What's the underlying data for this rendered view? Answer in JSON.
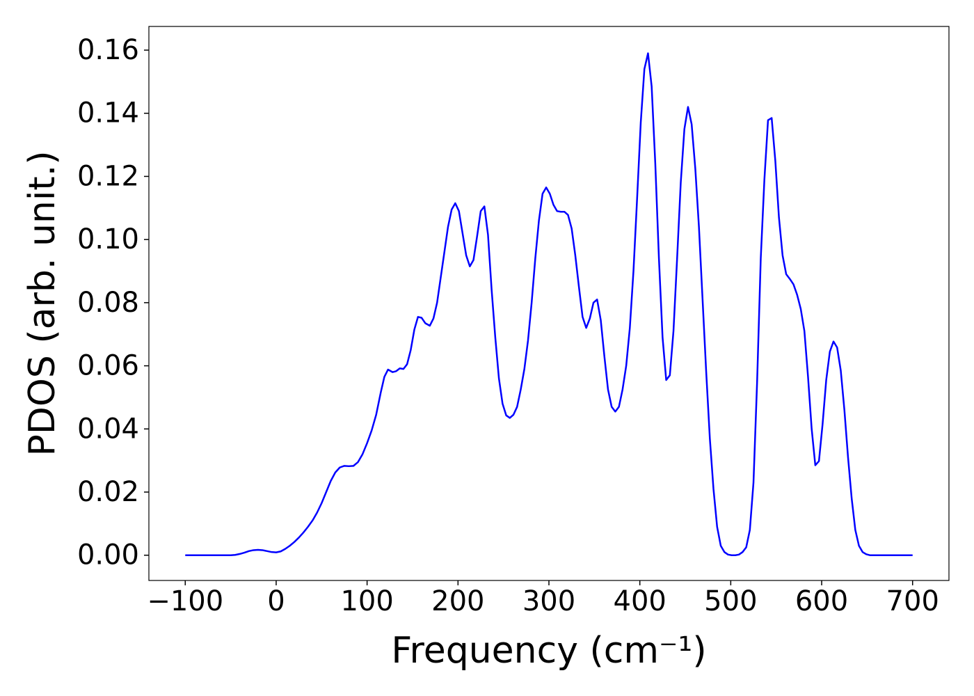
{
  "chart_data": {
    "type": "line",
    "x_label": "Frequency (cm⁻¹)",
    "y_label": "PDOS (arb. unit.)",
    "x": [
      -100,
      -50,
      -45,
      -40,
      -35,
      -30,
      -25,
      -20,
      -15,
      -10,
      -5,
      0,
      5,
      10,
      15,
      20,
      25,
      30,
      35,
      40,
      45,
      50,
      55,
      60,
      65,
      70,
      75,
      80,
      85,
      90,
      95,
      100,
      105,
      110,
      115,
      119,
      123,
      128,
      132,
      136,
      140,
      144,
      148,
      152,
      156,
      160,
      164,
      169,
      173,
      177,
      181,
      185,
      189,
      193,
      197,
      201,
      205,
      209,
      213,
      217,
      221,
      225,
      229,
      233,
      237,
      241,
      245,
      249,
      253,
      257,
      261,
      265,
      269,
      273,
      277,
      281,
      285,
      289,
      293,
      297,
      301,
      305,
      309,
      313,
      317,
      321,
      325,
      329,
      333,
      337,
      341,
      345,
      349,
      353,
      357,
      361,
      365,
      369,
      373,
      377,
      381,
      385,
      389,
      393,
      397,
      401,
      405,
      409,
      413,
      417,
      421,
      425,
      429,
      433,
      437,
      441,
      445,
      449,
      453,
      457,
      461,
      465,
      469,
      473,
      477,
      481,
      485,
      489,
      493,
      497,
      501,
      505,
      509,
      513,
      517,
      521,
      525,
      529,
      533,
      537,
      541,
      545,
      549,
      553,
      557,
      561,
      565,
      569,
      573,
      577,
      581,
      585,
      589,
      593,
      597,
      601,
      605,
      609,
      613,
      617,
      621,
      625,
      629,
      633,
      637,
      641,
      645,
      649,
      653,
      700
    ],
    "series": [
      {
        "color": "#0000ff",
        "values": [
          0,
          0,
          0.0001,
          0.0004,
          0.0008,
          0.0013,
          0.0016,
          0.0017,
          0.0016,
          0.0013,
          0.001,
          0.0009,
          0.0012,
          0.002,
          0.003,
          0.0042,
          0.0056,
          0.0072,
          0.009,
          0.011,
          0.0135,
          0.0165,
          0.02,
          0.0235,
          0.0262,
          0.0278,
          0.0283,
          0.0282,
          0.0283,
          0.0295,
          0.032,
          0.0355,
          0.0395,
          0.0445,
          0.0515,
          0.0565,
          0.0588,
          0.058,
          0.0583,
          0.0592,
          0.059,
          0.0605,
          0.065,
          0.0715,
          0.0755,
          0.0752,
          0.0735,
          0.0727,
          0.075,
          0.08,
          0.088,
          0.096,
          0.104,
          0.1095,
          0.1115,
          0.109,
          0.102,
          0.095,
          0.0915,
          0.0935,
          0.101,
          0.109,
          0.1105,
          0.1015,
          0.084,
          0.069,
          0.056,
          0.048,
          0.0443,
          0.0435,
          0.0445,
          0.047,
          0.0525,
          0.059,
          0.068,
          0.08,
          0.094,
          0.106,
          0.1145,
          0.1165,
          0.1145,
          0.111,
          0.109,
          0.1088,
          0.1088,
          0.1078,
          0.1035,
          0.095,
          0.085,
          0.0755,
          0.072,
          0.075,
          0.08,
          0.081,
          0.0745,
          0.063,
          0.0525,
          0.047,
          0.0455,
          0.047,
          0.0525,
          0.06,
          0.072,
          0.09,
          0.113,
          0.137,
          0.154,
          0.159,
          0.1485,
          0.124,
          0.094,
          0.069,
          0.0555,
          0.057,
          0.071,
          0.094,
          0.118,
          0.135,
          0.142,
          0.1365,
          0.1225,
          0.104,
          0.081,
          0.058,
          0.037,
          0.021,
          0.009,
          0.003,
          0.001,
          0.0002,
          0,
          0,
          0.0002,
          0.001,
          0.0025,
          0.008,
          0.023,
          0.055,
          0.094,
          0.119,
          0.1378,
          0.1385,
          0.125,
          0.107,
          0.095,
          0.089,
          0.0875,
          0.0858,
          0.0825,
          0.078,
          0.071,
          0.0565,
          0.04,
          0.0285,
          0.0298,
          0.0415,
          0.0555,
          0.0645,
          0.0677,
          0.0658,
          0.0585,
          0.046,
          0.031,
          0.018,
          0.008,
          0.003,
          0.001,
          0.0003,
          0,
          0
        ]
      }
    ],
    "xlim": [
      -140,
      740
    ],
    "ylim": [
      -0.008,
      0.1675
    ],
    "xticks": [
      {
        "value": -100,
        "label": "−100"
      },
      0,
      100,
      200,
      300,
      400,
      500,
      600,
      700
    ],
    "yticks": [
      {
        "value": 0,
        "label": "0.00"
      },
      {
        "value": 0.02,
        "label": "0.02"
      },
      {
        "value": 0.04,
        "label": "0.04"
      },
      {
        "value": 0.06,
        "label": "0.06"
      },
      {
        "value": 0.08,
        "label": "0.08"
      },
      {
        "value": 0.1,
        "label": "0.10"
      },
      {
        "value": 0.12,
        "label": "0.12"
      },
      {
        "value": 0.14,
        "label": "0.14"
      },
      {
        "value": 0.16,
        "label": "0.16"
      }
    ],
    "grid": false
  }
}
